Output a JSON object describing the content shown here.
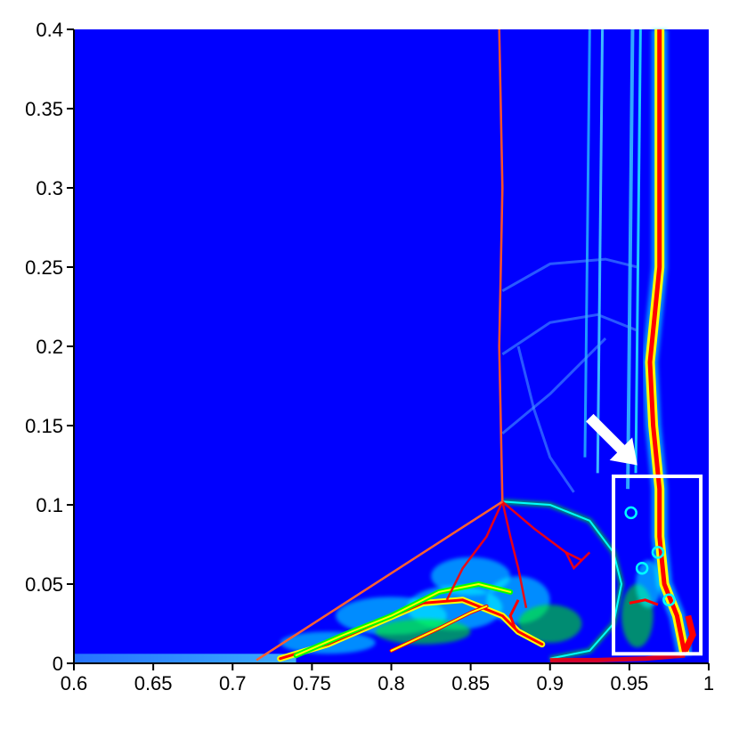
{
  "chart_data": {
    "type": "heatmap",
    "title": "",
    "xlabel": "",
    "ylabel": "",
    "xlim": [
      0.6,
      1.0
    ],
    "ylim": [
      0,
      0.4
    ],
    "x_ticks": [
      "0.6",
      "0.65",
      "0.7",
      "0.75",
      "0.8",
      "0.85",
      "0.9",
      "0.95",
      "1"
    ],
    "y_ticks": [
      "0",
      "0.05",
      "0.1",
      "0.15",
      "0.2",
      "0.25",
      "0.3",
      "0.35",
      "0.4"
    ],
    "colormap": [
      "#0000ff",
      "#00ffff",
      "#00ff00",
      "#ffff00",
      "#ff0000"
    ],
    "background_color": "#0000ff",
    "features": {
      "mach_stem": [
        [
          0.87,
          0.102
        ],
        [
          0.868,
          0.2
        ],
        [
          0.87,
          0.3
        ],
        [
          0.868,
          0.4
        ]
      ],
      "incident_shock": [
        [
          0.715,
          0.002
        ],
        [
          0.87,
          0.102
        ]
      ],
      "triple_point": [
        0.87,
        0.102
      ],
      "interface_front": [
        [
          0.985,
          0.005
        ],
        [
          0.98,
          0.03
        ],
        [
          0.972,
          0.05
        ],
        [
          0.969,
          0.08
        ],
        [
          0.969,
          0.11
        ],
        [
          0.965,
          0.15
        ],
        [
          0.963,
          0.19
        ],
        [
          0.965,
          0.21
        ],
        [
          0.969,
          0.25
        ],
        [
          0.969,
          0.3
        ],
        [
          0.969,
          0.35
        ],
        [
          0.969,
          0.4
        ]
      ],
      "highlight_box": {
        "x": [
          0.94,
          0.995
        ],
        "y": [
          0.006,
          0.118
        ]
      },
      "arrow": {
        "from": [
          0.925,
          0.155
        ],
        "to": [
          0.955,
          0.125
        ]
      }
    }
  }
}
